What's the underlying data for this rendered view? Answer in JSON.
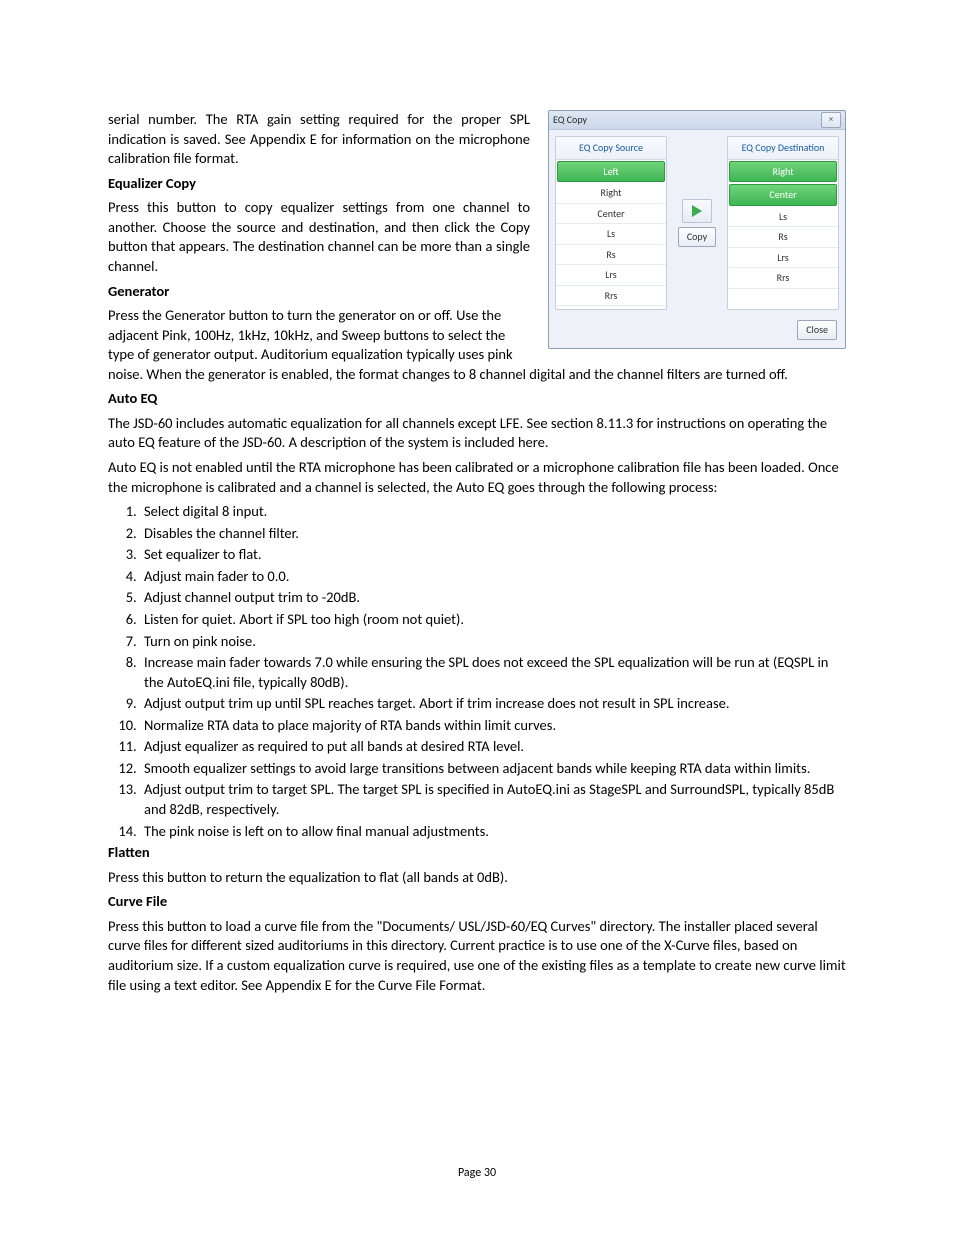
{
  "intro": {
    "p1": "serial number. The RTA gain setting required for the proper SPL indication is saved. See Appendix E for information on the microphone calibration file format."
  },
  "dialog": {
    "title": "EQ Copy",
    "close_x": "×",
    "src_head": "EQ Copy Source",
    "dst_head": "EQ Copy Destination",
    "channels": [
      "Left",
      "Right",
      "Center",
      "Ls",
      "Rs",
      "Lrs",
      "Rrs"
    ],
    "copy_label": "Copy",
    "close_label": "Close"
  },
  "eqcopy": {
    "heading": "Equalizer Copy",
    "body": "Press this button to copy equalizer settings from one channel to another. Choose the source and destination, and then click the Copy button that appears. The destination channel can be more than a single channel."
  },
  "generator": {
    "heading": "Generator",
    "body": "Press the Generator button to turn the generator on or off. Use the adjacent Pink, 100Hz, 1kHz, 10kHz, and Sweep buttons to select the type of generator output. Auditorium equalization typically uses pink noise.  When the generator is enabled, the format changes to 8 channel digital and the channel filters are turned off."
  },
  "autoeq": {
    "heading": "Auto EQ",
    "p1": "The JSD-60 includes automatic equalization for all channels except LFE. See section 8.11.3 for instructions on operating the auto EQ feature of the JSD-60. A description of the system is included here.",
    "p2": "Auto EQ is not enabled until the RTA microphone has been calibrated or a microphone calibration file has been loaded. Once the microphone is calibrated and a channel is selected, the Auto EQ goes through the following process:",
    "steps": [
      "Select digital 8 input.",
      "Disables the channel filter.",
      "Set equalizer to flat.",
      "Adjust main fader to 0.0.",
      "Adjust channel output trim to -20dB.",
      "Listen for quiet. Abort if SPL too high (room not quiet).",
      "Turn on pink noise.",
      "Increase main fader towards 7.0 while ensuring the SPL does not exceed the SPL equalization will be run at (EQSPL in the AutoEQ.ini file, typically 80dB).",
      "Adjust output trim up until SPL reaches target. Abort if trim increase does not result in SPL increase.",
      "Normalize RTA data to place majority of RTA bands within limit curves.",
      "Adjust equalizer as required to put all bands at desired RTA level.",
      "Smooth equalizer settings to avoid large transitions between adjacent bands while keeping RTA data within limits.",
      "Adjust output trim to target SPL. The target SPL is specified in AutoEQ.ini as StageSPL and SurroundSPL, typically 85dB and 82dB, respectively.",
      "The pink noise is left on to allow final manual adjustments."
    ]
  },
  "flatten": {
    "heading": "Flatten",
    "body": "Press this button to return the equalization to flat (all bands at 0dB)."
  },
  "curve": {
    "heading": "Curve File",
    "body": "Press this button to load a curve file from the \"Documents/ USL/JSD-60/EQ Curves\" directory. The installer placed several curve files for different sized auditoriums in this directory. Current practice is to use one of the X-Curve files, based on auditorium size. If a custom equalization curve is required, use one of the existing files as a template to create new curve limit file using a text editor.  See Appendix E for the Curve File Format."
  },
  "footer": "Page 30"
}
